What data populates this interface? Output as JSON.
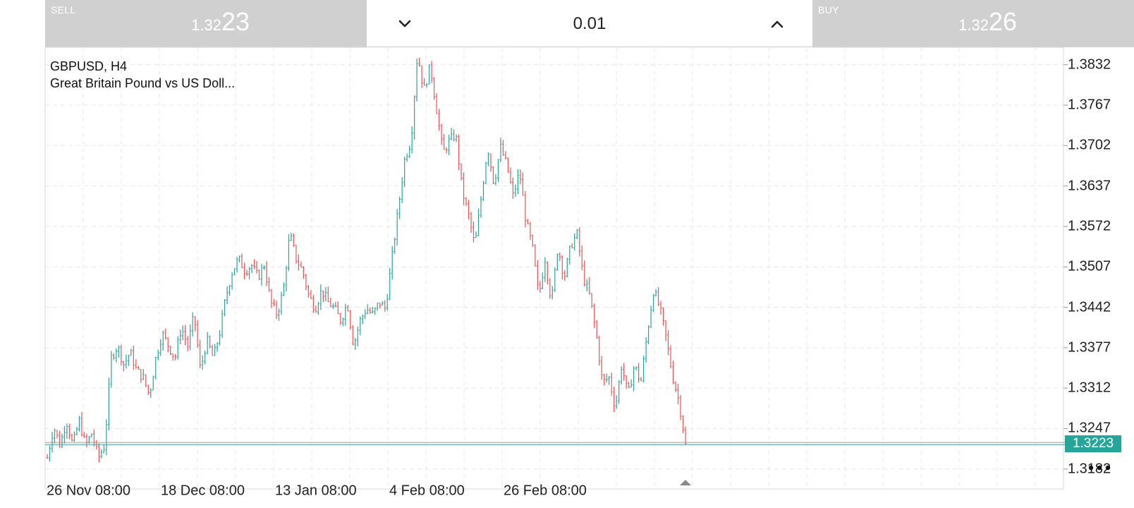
{
  "trade_bar": {
    "sell": {
      "label": "SELL",
      "price_small": "1.32",
      "price_big": "23"
    },
    "buy": {
      "label": "BUY",
      "price_small": "1.32",
      "price_big": "26"
    },
    "volume": {
      "value": "0.01"
    }
  },
  "chart": {
    "symbol": "GBPUSD, H4",
    "description": "Great Britain Pound vs US Doll...",
    "current_price": "1.3223",
    "colors": {
      "up": "#26a69a",
      "down": "#ef5350",
      "grid": "#e8e8e8",
      "price_tag": "#26a69a"
    }
  },
  "icons": {
    "volume_down": "chevron-down-icon",
    "volume_up": "chevron-up-icon",
    "more": "more-horizontal-icon"
  },
  "chart_data": {
    "type": "candlestick",
    "title": "GBPUSD, H4",
    "ylim": [
      1.315,
      1.386
    ],
    "y_ticks": [
      "1.3832",
      "1.3767",
      "1.3702",
      "1.3637",
      "1.3572",
      "1.3507",
      "1.3442",
      "1.3377",
      "1.3312",
      "1.3247",
      "1.3182"
    ],
    "x_ticks": [
      "26 Nov 08:00",
      "18 Dec 08:00",
      "13 Jan 08:00",
      "4 Feb 08:00",
      "26 Feb 08:00"
    ],
    "grid": true,
    "price_series": [
      1.32,
      1.325,
      1.322,
      1.326,
      1.322,
      1.326,
      1.322,
      1.324,
      1.32,
      1.322,
      1.336,
      1.338,
      1.335,
      1.337,
      1.334,
      1.333,
      1.33,
      1.336,
      1.34,
      1.338,
      1.336,
      1.341,
      1.338,
      1.343,
      1.334,
      1.339,
      1.336,
      1.34,
      1.346,
      1.35,
      1.352,
      1.35,
      1.351,
      1.349,
      1.351,
      1.345,
      1.343,
      1.347,
      1.356,
      1.352,
      1.35,
      1.346,
      1.344,
      1.347,
      1.345,
      1.344,
      1.342,
      1.345,
      1.338,
      1.342,
      1.344,
      1.343,
      1.345,
      1.344,
      1.352,
      1.36,
      1.368,
      1.371,
      1.385,
      1.379,
      1.383,
      1.376,
      1.369,
      1.371,
      1.372,
      1.363,
      1.359,
      1.354,
      1.362,
      1.37,
      1.364,
      1.37,
      1.367,
      1.362,
      1.366,
      1.358,
      1.354,
      1.346,
      1.352,
      1.345,
      1.354,
      1.349,
      1.354,
      1.356,
      1.349,
      1.346,
      1.34,
      1.332,
      1.333,
      1.328,
      1.335,
      1.33,
      1.335,
      1.332,
      1.34,
      1.347,
      1.344,
      1.339,
      1.333,
      1.329,
      1.3223
    ]
  }
}
